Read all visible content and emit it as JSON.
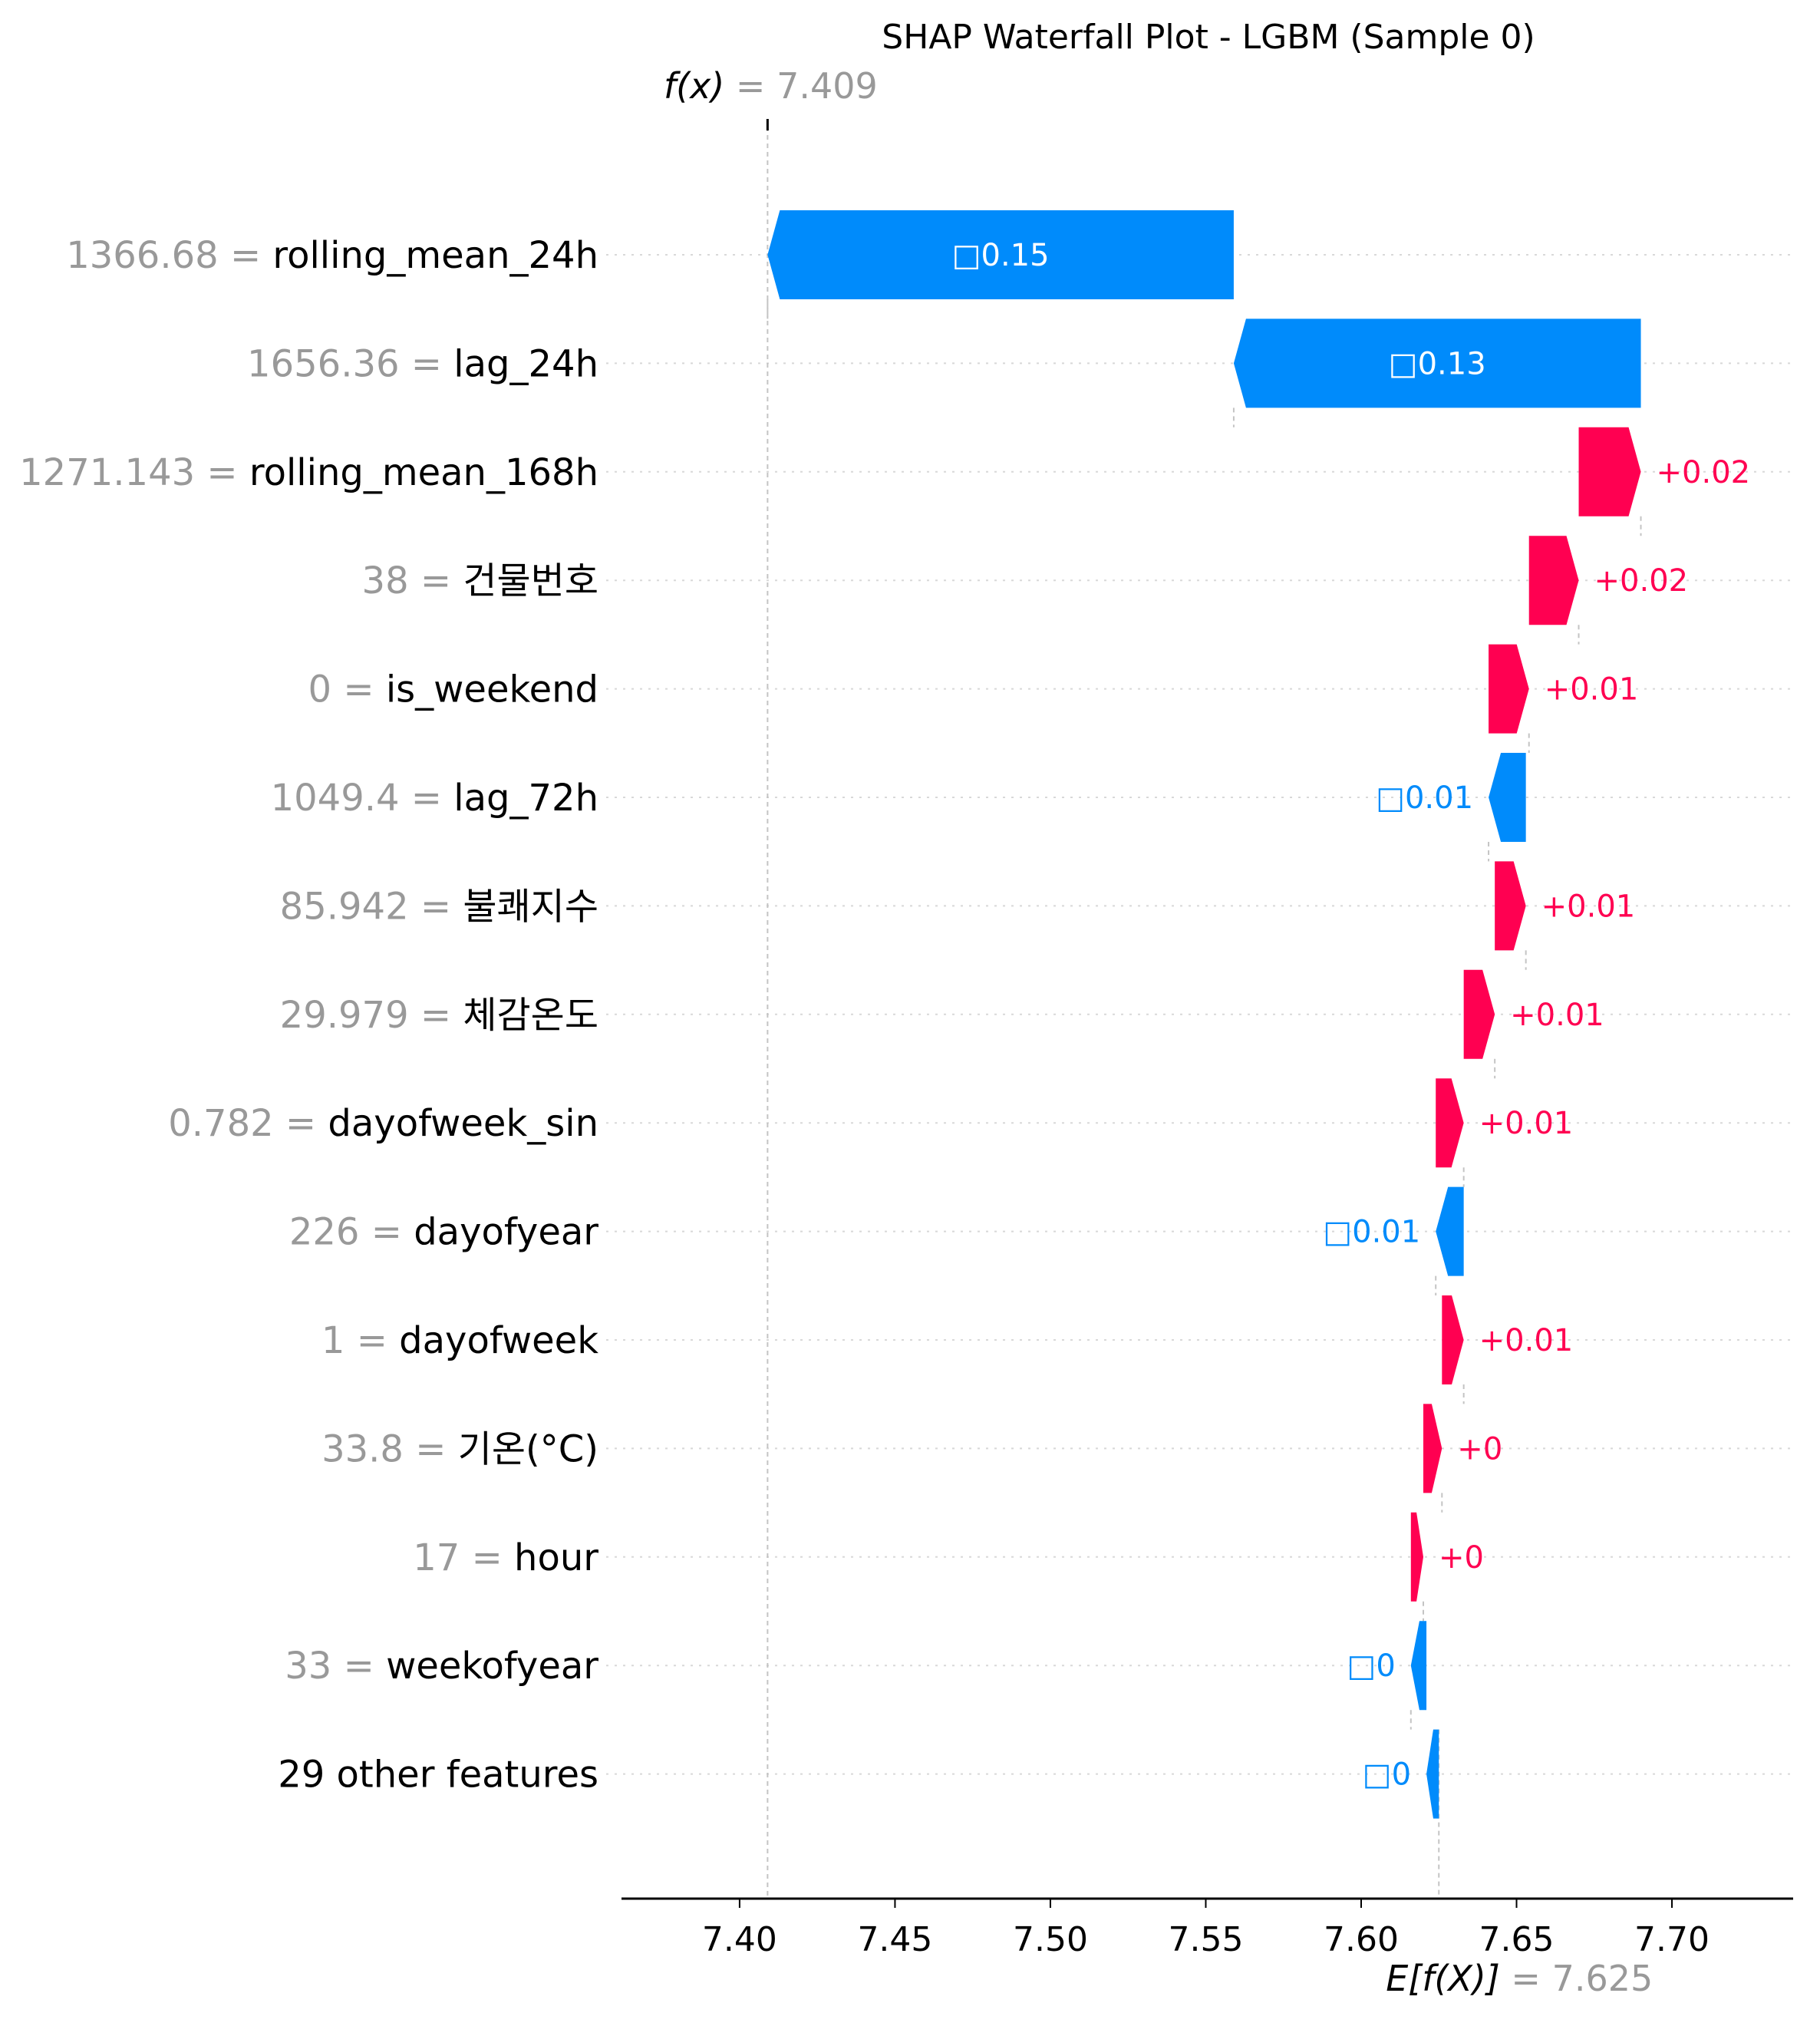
{
  "chart_data": {
    "type": "waterfall",
    "title": "SHAP Waterfall Plot - LGBM (Sample 0)",
    "fx_label": "f(x)",
    "fx_value": "7.409",
    "fx": 7.409,
    "efx_label": "E[f(X)]",
    "efx_value": "7.625",
    "efx": 7.625,
    "xlim": [
      7.362,
      7.739
    ],
    "xticks": [
      {
        "value": 7.4,
        "label": "7.40"
      },
      {
        "value": 7.45,
        "label": "7.45"
      },
      {
        "value": 7.5,
        "label": "7.50"
      },
      {
        "value": 7.55,
        "label": "7.55"
      },
      {
        "value": 7.6,
        "label": "7.60"
      },
      {
        "value": 7.65,
        "label": "7.65"
      },
      {
        "value": 7.7,
        "label": "7.70"
      }
    ],
    "colors": {
      "positive": "#ff0051",
      "negative": "#008bfb",
      "muted": "#999999",
      "text": "#000000"
    },
    "features": [
      {
        "value": "1366.68",
        "name": "rolling_mean_24h",
        "start": 7.559,
        "end": 7.409,
        "label": "□0.15"
      },
      {
        "value": "1656.36",
        "name": "lag_24h",
        "start": 7.69,
        "end": 7.559,
        "label": "□0.13"
      },
      {
        "value": "1271.143",
        "name": "rolling_mean_168h",
        "start": 7.67,
        "end": 7.69,
        "label": "+0.02"
      },
      {
        "value": "38",
        "name": "건물번호",
        "start": 7.654,
        "end": 7.67,
        "label": "+0.02"
      },
      {
        "value": "0",
        "name": "is_weekend",
        "start": 7.641,
        "end": 7.654,
        "label": "+0.01"
      },
      {
        "value": "1049.4",
        "name": "lag_72h",
        "start": 7.653,
        "end": 7.641,
        "label": "□0.01"
      },
      {
        "value": "85.942",
        "name": "불쾌지수",
        "start": 7.643,
        "end": 7.653,
        "label": "+0.01"
      },
      {
        "value": "29.979",
        "name": "체감온도",
        "start": 7.633,
        "end": 7.643,
        "label": "+0.01"
      },
      {
        "value": "0.782",
        "name": "dayofweek_sin",
        "start": 7.624,
        "end": 7.633,
        "label": "+0.01"
      },
      {
        "value": "226",
        "name": "dayofyear",
        "start": 7.633,
        "end": 7.624,
        "label": "□0.01"
      },
      {
        "value": "1",
        "name": "dayofweek",
        "start": 7.626,
        "end": 7.633,
        "label": "+0.01"
      },
      {
        "value": "33.8",
        "name": "기온(°C)",
        "start": 7.62,
        "end": 7.626,
        "label": "+0"
      },
      {
        "value": "17",
        "name": "hour",
        "start": 7.616,
        "end": 7.62,
        "label": "+0"
      },
      {
        "value": "33",
        "name": "weekofyear",
        "start": 7.621,
        "end": 7.616,
        "label": "□0"
      },
      {
        "value": "",
        "name": "29 other features",
        "start": 7.625,
        "end": 7.621,
        "label": "□0"
      }
    ]
  }
}
